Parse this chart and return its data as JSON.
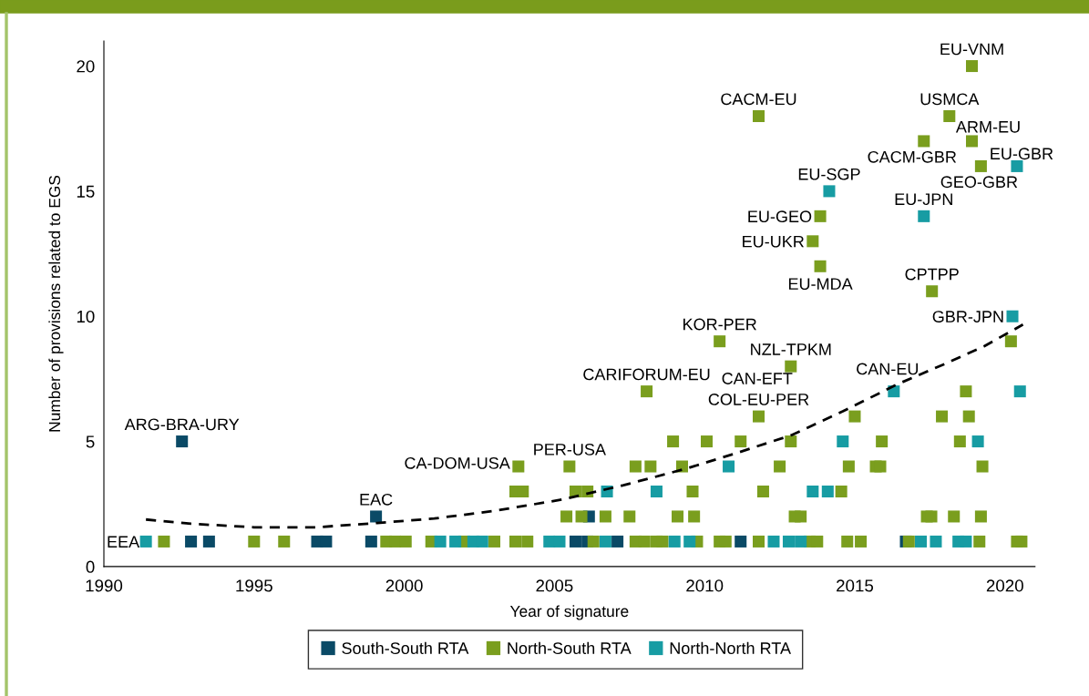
{
  "chart_data": {
    "type": "scatter",
    "xlabel": "Year of signature",
    "ylabel": "Number of provisions related to EGS",
    "xlim": [
      1990,
      2021
    ],
    "ylim": [
      0,
      21
    ],
    "xticks": [
      1990,
      1995,
      2000,
      2005,
      2010,
      2015,
      2020
    ],
    "yticks": [
      0,
      5,
      10,
      15,
      20
    ],
    "marker": "square",
    "legend": "bottom",
    "series": [
      {
        "name": "South-South RTA",
        "color": "#0a4a66",
        "x": [
          1992.6,
          1992.9,
          1993.5,
          1997.1,
          1997.4,
          1998.9,
          1999.06,
          2005.7,
          2006.1,
          2006.15,
          2007.1,
          2011.2,
          2016.7
        ],
        "values": [
          5,
          1,
          1,
          1,
          1,
          1,
          2,
          1,
          1,
          2,
          1,
          1,
          1
        ]
      },
      {
        "name": "North-South RTA",
        "color": "#7a9e1e",
        "x": [
          1992.0,
          1995.0,
          1996.0,
          1999.4,
          1999.7,
          2000.05,
          2000.9,
          2002.0,
          2003.0,
          2003.7,
          2004.1,
          2006.3,
          2007.7,
          2008.0,
          2008.4,
          2008.6,
          2009.75,
          2010.5,
          2010.7,
          2011.8,
          2013.5,
          2013.75,
          2014.75,
          2015.2,
          2016.8,
          2019.15,
          2020.4,
          2020.55,
          2005.4,
          2005.9,
          2006.7,
          2007.5,
          2009.1,
          2009.65,
          2013.0,
          2013.2,
          2017.4,
          2017.55,
          2018.3,
          2019.2,
          2003.7,
          2003.95,
          2005.7,
          2006.1,
          2009.6,
          2011.95,
          2014.55,
          2003.8,
          2005.5,
          2007.7,
          2008.2,
          2009.25,
          2012.5,
          2014.8,
          2015.7,
          2015.85,
          2019.25,
          2008.95,
          2010.07,
          2011.2,
          2012.87,
          2015.9,
          2018.5,
          2011.8,
          2015.0,
          2017.9,
          2018.8,
          2008.07,
          2018.7,
          2012.87,
          2010.5,
          2020.2,
          2017.57,
          2013.85,
          2013.6,
          2013.85,
          2019.2,
          2017.3,
          2018.9,
          2011.8,
          2018.15,
          2018.9
        ],
        "values": [
          1,
          1,
          1,
          1,
          1,
          1,
          1,
          1,
          1,
          1,
          1,
          1,
          1,
          1,
          1,
          1,
          1,
          1,
          1,
          1,
          1,
          1,
          1,
          1,
          1,
          1,
          1,
          1,
          2,
          2,
          2,
          2,
          2,
          2,
          2,
          2,
          2,
          2,
          2,
          2,
          3,
          3,
          3,
          3,
          3,
          3,
          3,
          4,
          4,
          4,
          4,
          4,
          4,
          4,
          4,
          4,
          4,
          5,
          5,
          5,
          5,
          5,
          5,
          6,
          6,
          6,
          6,
          7,
          7,
          8,
          9,
          9,
          11,
          12,
          13,
          14,
          16,
          17,
          17,
          18,
          18,
          20
        ]
      },
      {
        "name": "North-North RTA",
        "color": "#179ca3",
        "x": [
          1991.4,
          2001.2,
          2001.7,
          2002.3,
          2002.6,
          2004.83,
          2005.17,
          2006.7,
          2009.0,
          2009.5,
          2012.3,
          2012.8,
          2013.2,
          2017.2,
          2017.7,
          2018.45,
          2018.7,
          2006.75,
          2008.4,
          2013.6,
          2014.1,
          2010.8,
          2014.6,
          2019.1,
          2016.3,
          2020.5,
          2020.25,
          2017.3,
          2014.15,
          2020.4
        ],
        "values": [
          1,
          1,
          1,
          1,
          1,
          1,
          1,
          1,
          1,
          1,
          1,
          1,
          1,
          1,
          1,
          1,
          1,
          3,
          3,
          3,
          3,
          4,
          5,
          5,
          7,
          7,
          10,
          14,
          15,
          16
        ]
      },
      {
        "type": "line",
        "color": "#000000",
        "line_style": "dashed",
        "marker": "none",
        "x": [
          1991.4,
          1992.9,
          1995.0,
          1997.07,
          1999.1,
          2001.0,
          2003.03,
          2005.27,
          2007.3,
          2009.38,
          2011.1,
          2012.89,
          2014.6,
          2016.39,
          2018.0,
          2019.3,
          2020.6
        ],
        "values": [
          1.88,
          1.71,
          1.57,
          1.57,
          1.74,
          1.92,
          2.23,
          2.68,
          3.25,
          3.91,
          4.55,
          5.25,
          6.2,
          7.27,
          8.1,
          8.8,
          9.67
        ]
      }
    ],
    "annotations": [
      {
        "text": "EEA",
        "x": 1991.4,
        "y": 1
      },
      {
        "text": "ARG-BRA-URY",
        "x": 1992.6,
        "y": 5
      },
      {
        "text": "EAC",
        "x": 1999.06,
        "y": 2
      },
      {
        "text": "CA-DOM-USA",
        "x": 2003.8,
        "y": 4
      },
      {
        "text": "PER-USA",
        "x": 2005.5,
        "y": 4
      },
      {
        "text": "CARIFORUM-EU",
        "x": 2008.07,
        "y": 7
      },
      {
        "text": "KOR-PER",
        "x": 2010.5,
        "y": 9
      },
      {
        "text": "CACM-EU",
        "x": 2011.8,
        "y": 18
      },
      {
        "text": "COL-EU-PER",
        "x": 2011.8,
        "y": 6
      },
      {
        "text": "NZL-TPKM",
        "x": 2012.87,
        "y": 8
      },
      {
        "text": "CAN-EFT",
        "x": 2012.87,
        "y": 8
      },
      {
        "text": "EU-UKR",
        "x": 2013.6,
        "y": 13
      },
      {
        "text": "EU-GEO",
        "x": 2013.85,
        "y": 14
      },
      {
        "text": "EU-MDA",
        "x": 2013.85,
        "y": 12
      },
      {
        "text": "EU-SGP",
        "x": 2014.15,
        "y": 15
      },
      {
        "text": "CAN-EU",
        "x": 2016.3,
        "y": 7
      },
      {
        "text": "CPTPP",
        "x": 2017.57,
        "y": 11
      },
      {
        "text": "EU-JPN",
        "x": 2017.3,
        "y": 14
      },
      {
        "text": "CACM-GBR",
        "x": 2017.3,
        "y": 17
      },
      {
        "text": "USMCA",
        "x": 2018.15,
        "y": 18
      },
      {
        "text": "ARM-EU",
        "x": 2018.9,
        "y": 17
      },
      {
        "text": "GEO-GBR",
        "x": 2019.2,
        "y": 16
      },
      {
        "text": "EU-GBR",
        "x": 2020.4,
        "y": 16
      },
      {
        "text": "EU-VNM",
        "x": 2018.9,
        "y": 20
      },
      {
        "text": "GBR-JPN",
        "x": 2020.25,
        "y": 10
      }
    ]
  }
}
